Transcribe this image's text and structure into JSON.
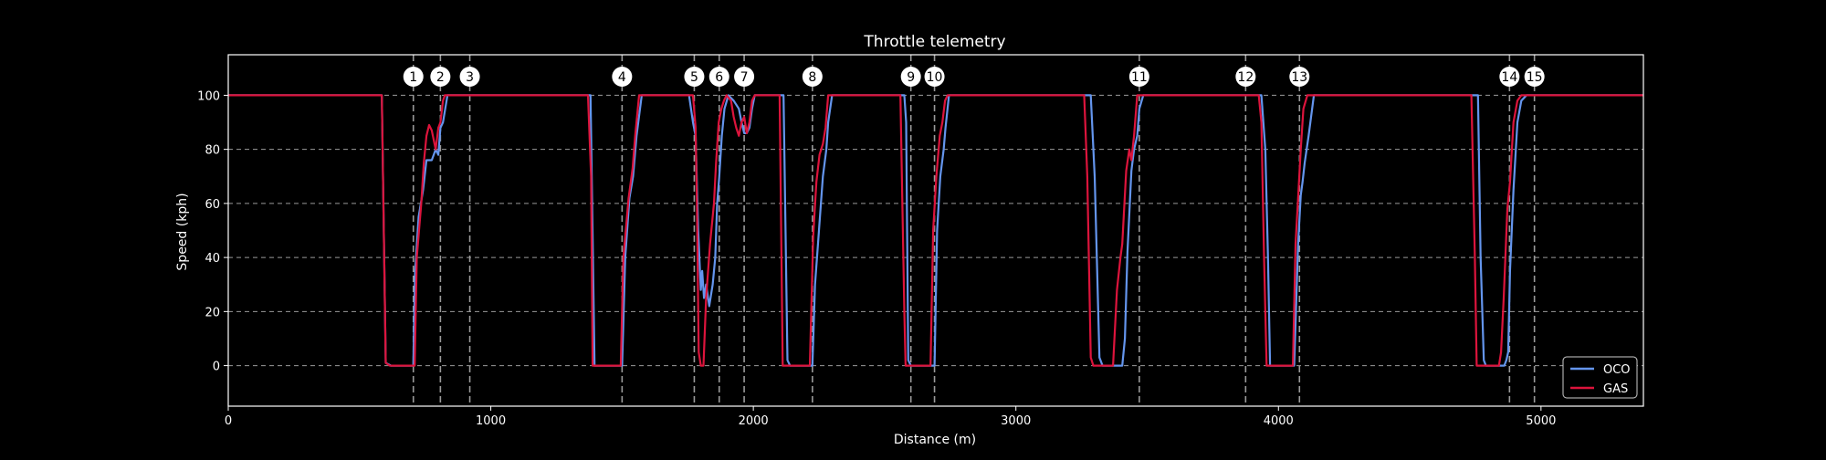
{
  "chart_data": {
    "type": "line",
    "title": "Throttle telemetry",
    "xlabel": "Distance (m)",
    "ylabel": "Speed (kph)",
    "xlim": [
      0,
      5390
    ],
    "ylim": [
      -15,
      115
    ],
    "xticks": [
      0,
      1000,
      2000,
      3000,
      4000,
      5000
    ],
    "yticks": [
      0,
      20,
      40,
      60,
      80,
      100
    ],
    "grid": "horizontal-dashed",
    "legend_position": "bottom-right",
    "corners": [
      {
        "label": "1",
        "x": 705
      },
      {
        "label": "2",
        "x": 808
      },
      {
        "label": "3",
        "x": 920
      },
      {
        "label": "4",
        "x": 1500
      },
      {
        "label": "5",
        "x": 1775
      },
      {
        "label": "6",
        "x": 1870
      },
      {
        "label": "7",
        "x": 1965
      },
      {
        "label": "8",
        "x": 2225
      },
      {
        "label": "9",
        "x": 2600
      },
      {
        "label": "10",
        "x": 2690
      },
      {
        "label": "11",
        "x": 3470
      },
      {
        "label": "12",
        "x": 3875
      },
      {
        "label": "13",
        "x": 4080
      },
      {
        "label": "14",
        "x": 4880
      },
      {
        "label": "15",
        "x": 4975
      }
    ],
    "series": [
      {
        "name": "OCO",
        "color": "#6495ed",
        "points": [
          [
            0,
            100
          ],
          [
            585,
            100
          ],
          [
            600,
            1
          ],
          [
            620,
            0
          ],
          [
            705,
            0
          ],
          [
            712,
            35
          ],
          [
            725,
            55
          ],
          [
            742,
            65
          ],
          [
            755,
            76
          ],
          [
            775,
            76
          ],
          [
            790,
            80
          ],
          [
            800,
            78
          ],
          [
            808,
            88
          ],
          [
            818,
            90
          ],
          [
            835,
            100
          ],
          [
            1380,
            100
          ],
          [
            1395,
            0
          ],
          [
            1500,
            0
          ],
          [
            1512,
            40
          ],
          [
            1528,
            62
          ],
          [
            1542,
            70
          ],
          [
            1555,
            85
          ],
          [
            1575,
            100
          ],
          [
            1755,
            100
          ],
          [
            1770,
            90
          ],
          [
            1780,
            85
          ],
          [
            1790,
            50
          ],
          [
            1800,
            28
          ],
          [
            1805,
            35
          ],
          [
            1812,
            25
          ],
          [
            1820,
            30
          ],
          [
            1832,
            22
          ],
          [
            1845,
            30
          ],
          [
            1855,
            40
          ],
          [
            1862,
            60
          ],
          [
            1870,
            70
          ],
          [
            1880,
            85
          ],
          [
            1890,
            95
          ],
          [
            1905,
            100
          ],
          [
            1925,
            98
          ],
          [
            1945,
            95
          ],
          [
            1955,
            90
          ],
          [
            1965,
            86
          ],
          [
            1975,
            86
          ],
          [
            1985,
            88
          ],
          [
            1995,
            95
          ],
          [
            2005,
            100
          ],
          [
            2115,
            100
          ],
          [
            2130,
            2
          ],
          [
            2140,
            0
          ],
          [
            2225,
            0
          ],
          [
            2235,
            30
          ],
          [
            2250,
            50
          ],
          [
            2265,
            70
          ],
          [
            2278,
            80
          ],
          [
            2285,
            90
          ],
          [
            2300,
            100
          ],
          [
            2575,
            100
          ],
          [
            2582,
            90
          ],
          [
            2590,
            2
          ],
          [
            2600,
            0
          ],
          [
            2690,
            0
          ],
          [
            2700,
            50
          ],
          [
            2712,
            70
          ],
          [
            2725,
            80
          ],
          [
            2732,
            88
          ],
          [
            2745,
            100
          ],
          [
            3285,
            100
          ],
          [
            3300,
            70
          ],
          [
            3318,
            3
          ],
          [
            3330,
            0
          ],
          [
            3405,
            0
          ],
          [
            3415,
            10
          ],
          [
            3425,
            42
          ],
          [
            3440,
            72
          ],
          [
            3450,
            80
          ],
          [
            3462,
            85
          ],
          [
            3470,
            95
          ],
          [
            3485,
            100
          ],
          [
            3935,
            100
          ],
          [
            3950,
            80
          ],
          [
            3960,
            40
          ],
          [
            3968,
            0
          ],
          [
            4060,
            0
          ],
          [
            4075,
            45
          ],
          [
            4085,
            63
          ],
          [
            4092,
            68
          ],
          [
            4100,
            75
          ],
          [
            4115,
            85
          ],
          [
            4135,
            100
          ],
          [
            4760,
            100
          ],
          [
            4770,
            40
          ],
          [
            4782,
            2
          ],
          [
            4790,
            0
          ],
          [
            4860,
            0
          ],
          [
            4868,
            2
          ],
          [
            4875,
            5
          ],
          [
            4882,
            35
          ],
          [
            4895,
            65
          ],
          [
            4910,
            90
          ],
          [
            4925,
            98
          ],
          [
            4945,
            100
          ],
          [
            5390,
            100
          ]
        ]
      },
      {
        "name": "GAS",
        "color": "#dc143c",
        "points": [
          [
            0,
            100
          ],
          [
            585,
            100
          ],
          [
            600,
            1
          ],
          [
            615,
            0
          ],
          [
            710,
            0
          ],
          [
            718,
            40
          ],
          [
            735,
            60
          ],
          [
            745,
            75
          ],
          [
            755,
            85
          ],
          [
            765,
            89
          ],
          [
            775,
            87
          ],
          [
            790,
            80
          ],
          [
            800,
            88
          ],
          [
            808,
            90
          ],
          [
            818,
            98
          ],
          [
            825,
            100
          ],
          [
            1370,
            100
          ],
          [
            1382,
            70
          ],
          [
            1388,
            0
          ],
          [
            1495,
            0
          ],
          [
            1505,
            40
          ],
          [
            1525,
            62
          ],
          [
            1540,
            73
          ],
          [
            1550,
            85
          ],
          [
            1565,
            100
          ],
          [
            1770,
            100
          ],
          [
            1780,
            88
          ],
          [
            1785,
            60
          ],
          [
            1792,
            5
          ],
          [
            1800,
            0
          ],
          [
            1810,
            0
          ],
          [
            1820,
            25
          ],
          [
            1835,
            45
          ],
          [
            1850,
            60
          ],
          [
            1858,
            75
          ],
          [
            1868,
            90
          ],
          [
            1878,
            95
          ],
          [
            1888,
            98
          ],
          [
            1898,
            100
          ],
          [
            1915,
            98
          ],
          [
            1925,
            92
          ],
          [
            1935,
            88
          ],
          [
            1945,
            85
          ],
          [
            1955,
            90
          ],
          [
            1965,
            92
          ],
          [
            1975,
            86
          ],
          [
            1985,
            90
          ],
          [
            1995,
            98
          ],
          [
            2005,
            100
          ],
          [
            2100,
            100
          ],
          [
            2112,
            0
          ],
          [
            2215,
            0
          ],
          [
            2228,
            48
          ],
          [
            2240,
            68
          ],
          [
            2252,
            78
          ],
          [
            2265,
            82
          ],
          [
            2275,
            88
          ],
          [
            2285,
            100
          ],
          [
            2560,
            100
          ],
          [
            2575,
            20
          ],
          [
            2580,
            0
          ],
          [
            2675,
            0
          ],
          [
            2685,
            50
          ],
          [
            2697,
            70
          ],
          [
            2710,
            85
          ],
          [
            2720,
            90
          ],
          [
            2730,
            98
          ],
          [
            2740,
            100
          ],
          [
            3260,
            100
          ],
          [
            3272,
            70
          ],
          [
            3285,
            3
          ],
          [
            3295,
            0
          ],
          [
            3370,
            0
          ],
          [
            3385,
            28
          ],
          [
            3398,
            40
          ],
          [
            3405,
            45
          ],
          [
            3420,
            72
          ],
          [
            3432,
            80
          ],
          [
            3440,
            76
          ],
          [
            3450,
            85
          ],
          [
            3462,
            100
          ],
          [
            3925,
            100
          ],
          [
            3935,
            90
          ],
          [
            3945,
            40
          ],
          [
            3955,
            0
          ],
          [
            4055,
            0
          ],
          [
            4065,
            45
          ],
          [
            4075,
            62
          ],
          [
            4085,
            80
          ],
          [
            4095,
            95
          ],
          [
            4110,
            100
          ],
          [
            4735,
            100
          ],
          [
            4748,
            40
          ],
          [
            4755,
            0
          ],
          [
            4840,
            0
          ],
          [
            4848,
            5
          ],
          [
            4858,
            25
          ],
          [
            4872,
            58
          ],
          [
            4882,
            68
          ],
          [
            4895,
            90
          ],
          [
            4910,
            98
          ],
          [
            4925,
            100
          ],
          [
            5390,
            100
          ]
        ]
      }
    ]
  }
}
